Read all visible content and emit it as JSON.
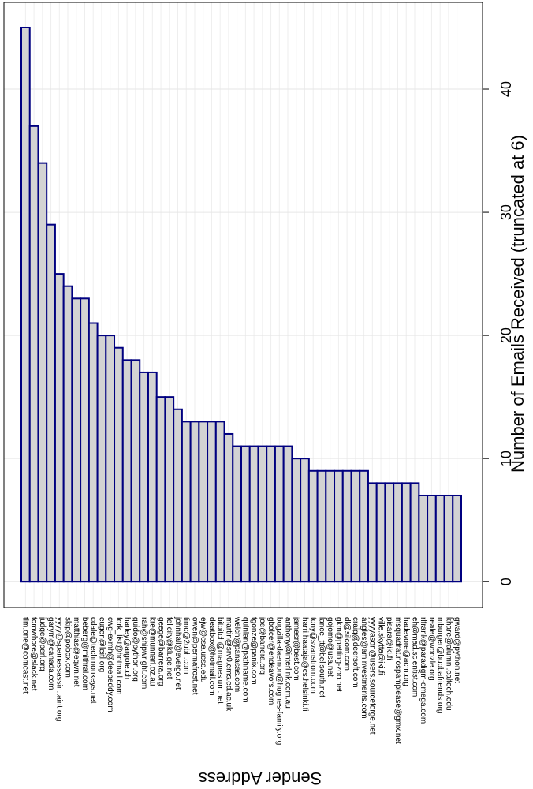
{
  "chart_data": {
    "type": "bar",
    "x_label": "Sender Address",
    "y_label": "Number of Emails Received (truncated at 6)",
    "categories": [
      "tim.one@comcast.net",
      "tomwhore@slack.net",
      "judge@perl.org",
      "garym@canada.com",
      "yyyy@spamassassin.taint.org",
      "skip@pobox.com",
      "matthias@egwn.net",
      "beberg@mithral.com",
      "cdale@techmonkeys.net",
      "eugen@leitl.org",
      "cwg-exmh@deepeddy.com",
      "fork_list@hotmail.com",
      "harley@argote.ch",
      "guido@python.org",
      "rah@shipwright.com",
      "kre@munnari.oz.au",
      "geege@barrera.org",
      "felicity@kluge.net",
      "johnhall@evergo.net",
      "timc@2ubh.com",
      "owen@permafrost.net",
      "ejw@cse.ucsc.edu",
      "deatbox@hotmail.com",
      "bitbitch@magnesium.net",
      "martin@srv0.ems.ed.ac.uk",
      "welch@panasas.com",
      "quinlan@pathname.com",
      "tgonze@panix.com",
      "joe@barrera.org",
      "gbolcer@endeavors.com",
      "bugzilla-daemon@hughes-family.org",
      "anthony@interlink.com.au",
      "jamesr@best.com",
      "harri.haataja@cs.helsinki.fi",
      "tony@svanstrom.com",
      "lance_tt@bellsouth.net",
      "gojomo@usa.net",
      "gkm@petting-zoo.net",
      "dl@silcom.com",
      "craig@deersoft.com",
      "angles@aminvestments.com",
      "yyyyason@users.sourceforge.net",
      "ville.skytta@iki.fi",
      "pisara@iki.fi",
      "msquadrat.nospamplease@gmx.net",
      "hadevore@acm.org",
      "eh@mad.scientist.com",
      "rlfrank@paradigm-omega.com",
      "reale@woozle.org",
      "mburger@bubbafriends.org",
      "khare@alumni.caltech.edu",
      "gward@python.net"
    ],
    "values": [
      45,
      37,
      34,
      29,
      25,
      24,
      23,
      23,
      21,
      20,
      20,
      19,
      18,
      18,
      17,
      17,
      15,
      15,
      14,
      13,
      13,
      13,
      13,
      13,
      12,
      11,
      11,
      11,
      11,
      11,
      11,
      11,
      10,
      10,
      9,
      9,
      9,
      9,
      9,
      9,
      9,
      8,
      8,
      8,
      8,
      8,
      8,
      7,
      7,
      7,
      7,
      7
    ],
    "color": "#d3d3d3",
    "edge_color": "#000080",
    "ylim": [
      -2.1,
      47.05
    ],
    "yticks": [
      0,
      10,
      20,
      30,
      40
    ],
    "grid": true
  }
}
